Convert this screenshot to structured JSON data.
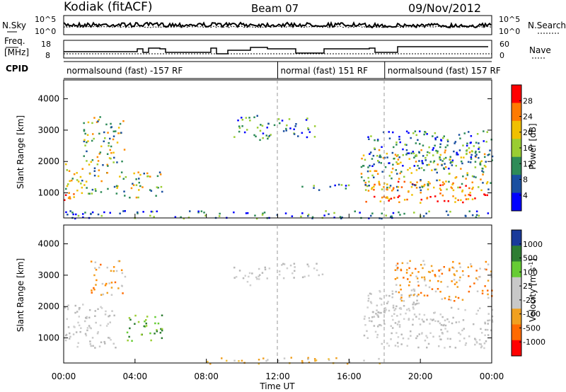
{
  "header": {
    "station": "Kodiak (fitACF)",
    "beam": "Beam 07",
    "date": "09/Nov/2012"
  },
  "labels": {
    "nsky": "N.Sky",
    "freq_line1": "Freq.",
    "freq_line2": "[MHz]",
    "cpid": "CPID",
    "nsearch": "N.Search",
    "nave": "Nave",
    "x_axis": "Time UT"
  },
  "noise_panel": {
    "left_ticks": [
      "10^5",
      "10^0"
    ],
    "right_ticks": [
      "10^5",
      "10^0"
    ]
  },
  "freq_panel": {
    "left_ticks": [
      "18",
      "8"
    ],
    "right_ticks": [
      "60",
      "0"
    ]
  },
  "cpid_segments": [
    {
      "label": "normalsound (fast) -157 RF",
      "start_hour": 0.0
    },
    {
      "label": "normal (fast) 151 RF",
      "start_hour": 12.0
    },
    {
      "label": "normalsound (fast) 157 RF",
      "start_hour": 18.0
    }
  ],
  "chart_data": [
    {
      "type": "heatmap",
      "name": "power",
      "xlabel": "Time UT",
      "ylabel": "Slant Range [km]",
      "xlim_hours": [
        0,
        24
      ],
      "ylim_km": [
        200,
        4600
      ],
      "x_ticks": [
        "00:00",
        "04:00",
        "08:00",
        "12:00",
        "16:00",
        "20:00",
        "00:00"
      ],
      "y_ticks": [
        "1000",
        "2000",
        "3000",
        "4000"
      ],
      "colorbar": {
        "label": "Power [dB]",
        "ticks": [
          "28",
          "24",
          "20",
          "16",
          "12",
          "8",
          "4"
        ],
        "colors": [
          "#ff0000",
          "#ff7a00",
          "#f0c000",
          "#9acd32",
          "#2e8b57",
          "#1a4fa0",
          "#0000ff"
        ]
      },
      "regions": [
        {
          "t0": 0.0,
          "t1": 1.3,
          "r0": 750,
          "r1": 1150,
          "level": "high"
        },
        {
          "t0": 0.0,
          "t1": 2.5,
          "r0": 1000,
          "r1": 2000,
          "level": "mid"
        },
        {
          "t0": 1.0,
          "t1": 3.4,
          "r0": 2000,
          "r1": 3500,
          "level": "mixed"
        },
        {
          "t0": 2.8,
          "t1": 5.5,
          "r0": 850,
          "r1": 1700,
          "level": "mid"
        },
        {
          "t0": 9.5,
          "t1": 11.8,
          "r0": 2700,
          "r1": 3500,
          "level": "low"
        },
        {
          "t0": 12.0,
          "t1": 14.2,
          "r0": 2800,
          "r1": 3400,
          "level": "low"
        },
        {
          "t0": 13.0,
          "t1": 16.0,
          "r0": 1100,
          "r1": 1300,
          "level": "low"
        },
        {
          "t0": 16.8,
          "t1": 24.0,
          "r0": 700,
          "r1": 1400,
          "level": "high"
        },
        {
          "t0": 16.5,
          "t1": 24.0,
          "r0": 1100,
          "r1": 2400,
          "level": "mid"
        },
        {
          "t0": 17.0,
          "t1": 24.0,
          "r0": 1800,
          "r1": 3000,
          "level": "low"
        },
        {
          "t0": 0.0,
          "t1": 24.0,
          "r0": 200,
          "r1": 450,
          "level": "low"
        }
      ]
    },
    {
      "type": "heatmap",
      "name": "velocity",
      "xlabel": "Time UT",
      "ylabel": "Slant Range [km]",
      "xlim_hours": [
        0,
        24
      ],
      "ylim_km": [
        200,
        4600
      ],
      "x_ticks": [
        "00:00",
        "04:00",
        "08:00",
        "12:00",
        "16:00",
        "20:00",
        "00:00"
      ],
      "y_ticks": [
        "1000",
        "2000",
        "3000",
        "4000"
      ],
      "colorbar": {
        "label": "Velocity [m s^-1]",
        "ticks": [
          "1000",
          "500",
          "100",
          "25",
          "-25",
          "-100",
          "-500",
          "-1000"
        ],
        "colors": [
          "#1a3a9a",
          "#2e7d32",
          "#66cc33",
          "#c8c8c8",
          "#c8c8c8",
          "#f0a020",
          "#ff6a00",
          "#ff0000"
        ]
      },
      "regions": [
        {
          "t0": 0.0,
          "t1": 3.0,
          "r0": 700,
          "r1": 2100,
          "level": "ground"
        },
        {
          "t0": 1.5,
          "t1": 3.4,
          "r0": 2400,
          "r1": 3500,
          "level": "neg"
        },
        {
          "t0": 3.5,
          "t1": 5.5,
          "r0": 900,
          "r1": 1800,
          "level": "pos"
        },
        {
          "t0": 9.5,
          "t1": 11.5,
          "r0": 2700,
          "r1": 3300,
          "level": "ground"
        },
        {
          "t0": 12.0,
          "t1": 14.5,
          "r0": 2900,
          "r1": 3400,
          "level": "ground"
        },
        {
          "t0": 16.8,
          "t1": 24.0,
          "r0": 700,
          "r1": 2000,
          "level": "ground"
        },
        {
          "t0": 17.0,
          "t1": 20.0,
          "r0": 1400,
          "r1": 2600,
          "level": "ground"
        },
        {
          "t0": 18.5,
          "t1": 24.0,
          "r0": 2200,
          "r1": 3500,
          "level": "neg"
        },
        {
          "t0": 8.0,
          "t1": 18.0,
          "r0": 200,
          "r1": 400,
          "level": "negsmall"
        }
      ]
    }
  ]
}
